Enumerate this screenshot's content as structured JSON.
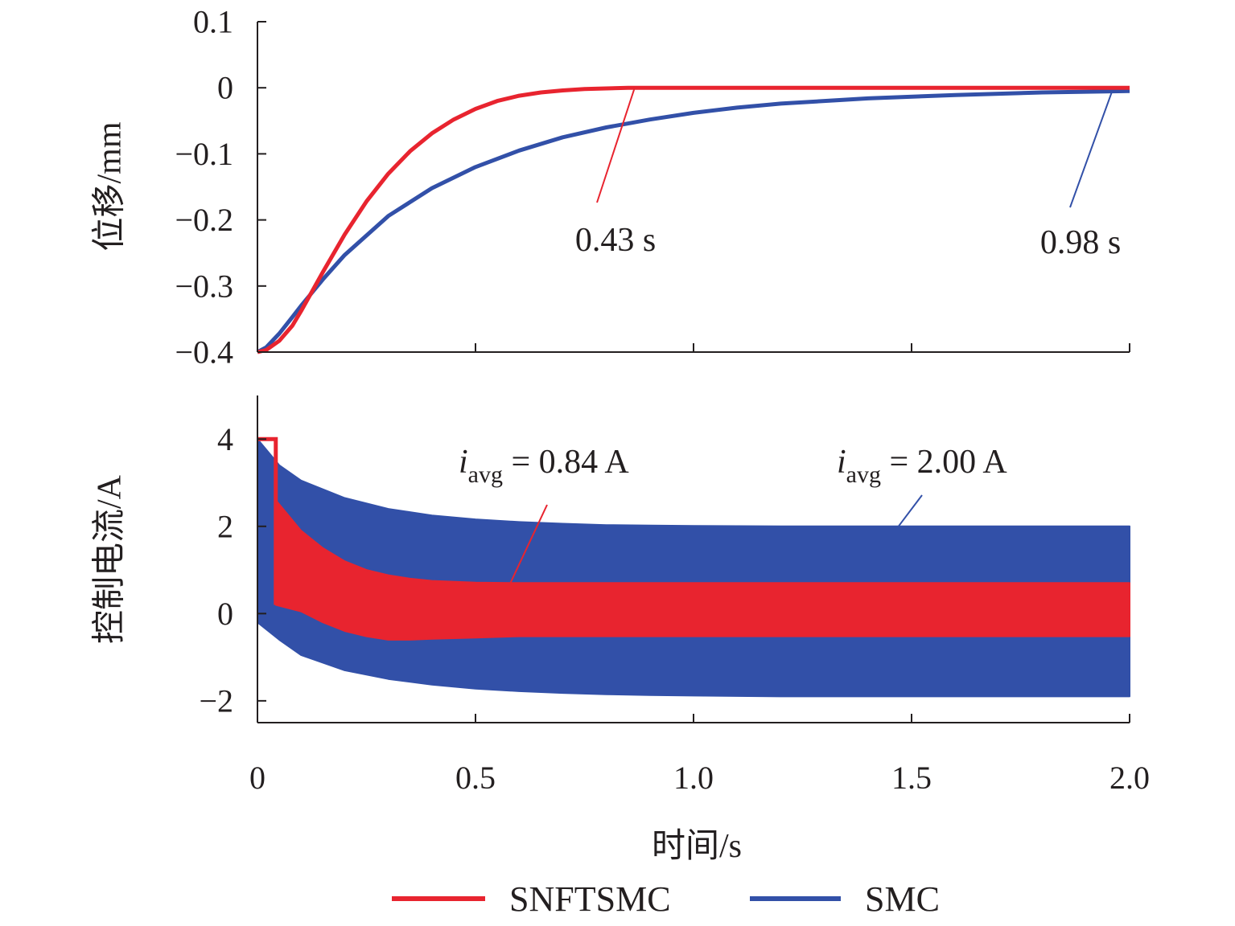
{
  "chart_data": [
    {
      "type": "line",
      "name": "displacement",
      "ylabel": "位移/mm",
      "xlim": [
        0,
        2.0
      ],
      "ylim": [
        -0.4,
        0.1
      ],
      "yticks": [
        0.1,
        0,
        -0.1,
        -0.2,
        -0.3,
        -0.4
      ],
      "ytick_labels": [
        "0.1",
        "0",
        "−0.1",
        "−0.2",
        "−0.3",
        "−0.4"
      ],
      "xticks": [
        0,
        0.5,
        1.0,
        1.5,
        2.0
      ],
      "grid": false,
      "series": [
        {
          "name": "SNFTSMC",
          "color": "#e8242f",
          "x": [
            0,
            0.02,
            0.05,
            0.08,
            0.1,
            0.15,
            0.2,
            0.25,
            0.3,
            0.35,
            0.4,
            0.45,
            0.5,
            0.55,
            0.6,
            0.65,
            0.7,
            0.75,
            0.8,
            0.85,
            0.9,
            1.0,
            1.2,
            1.4,
            1.6,
            1.8,
            2.0
          ],
          "y": [
            -0.4,
            -0.397,
            -0.383,
            -0.36,
            -0.338,
            -0.279,
            -0.222,
            -0.172,
            -0.13,
            -0.096,
            -0.069,
            -0.048,
            -0.032,
            -0.02,
            -0.012,
            -0.007,
            -0.004,
            -0.002,
            -0.001,
            0,
            0,
            0,
            0,
            0,
            0,
            0,
            0
          ]
        },
        {
          "name": "SMC",
          "color": "#3250a8",
          "x": [
            0,
            0.02,
            0.05,
            0.08,
            0.1,
            0.15,
            0.2,
            0.3,
            0.4,
            0.5,
            0.6,
            0.7,
            0.8,
            0.9,
            1.0,
            1.1,
            1.2,
            1.4,
            1.6,
            1.8,
            2.0
          ],
          "y": [
            -0.4,
            -0.393,
            -0.372,
            -0.347,
            -0.33,
            -0.29,
            -0.253,
            -0.194,
            -0.152,
            -0.12,
            -0.095,
            -0.075,
            -0.06,
            -0.048,
            -0.038,
            -0.03,
            -0.024,
            -0.016,
            -0.011,
            -0.007,
            -0.005
          ]
        }
      ],
      "annotations": [
        {
          "text": "0.43 s",
          "color": "#e8242f",
          "point": [
            0.865,
            0
          ]
        },
        {
          "text": "0.98 s",
          "color": "#3250a8",
          "point": [
            1.96,
            -0.005
          ]
        }
      ]
    },
    {
      "type": "area",
      "name": "control-current",
      "ylabel": "控制电流/A",
      "xlabel": "时间/s",
      "xlim": [
        0,
        2.0
      ],
      "ylim": [
        -2.5,
        5
      ],
      "yticks": [
        4,
        2,
        0,
        -2
      ],
      "ytick_labels": [
        "4",
        "2",
        "0",
        "−2"
      ],
      "xticks": [
        0,
        0.5,
        1.0,
        1.5,
        2.0
      ],
      "xtick_labels": [
        "0",
        "0.5",
        "1.0",
        "1.5",
        "2.0"
      ],
      "grid": false,
      "series": [
        {
          "name": "SMC",
          "color": "#3250a8",
          "x": [
            0,
            0.05,
            0.1,
            0.2,
            0.3,
            0.4,
            0.5,
            0.6,
            0.7,
            0.8,
            0.9,
            1.0,
            1.2,
            1.4,
            1.6,
            1.8,
            2.0
          ],
          "upper": [
            4.0,
            3.4,
            3.05,
            2.65,
            2.4,
            2.25,
            2.16,
            2.1,
            2.06,
            2.03,
            2.02,
            2.01,
            2.0,
            2.0,
            2.0,
            2.0,
            2.0
          ],
          "lower": [
            -0.2,
            -0.6,
            -0.95,
            -1.3,
            -1.5,
            -1.63,
            -1.72,
            -1.78,
            -1.82,
            -1.85,
            -1.87,
            -1.88,
            -1.9,
            -1.9,
            -1.9,
            -1.9,
            -1.9
          ]
        },
        {
          "name": "SNFTSMC",
          "color": "#e8242f",
          "x": [
            0,
            0.04,
            0.042,
            0.1,
            0.15,
            0.2,
            0.25,
            0.3,
            0.35,
            0.4,
            0.5,
            0.6,
            0.8,
            1.0,
            1.2,
            1.4,
            1.6,
            1.8,
            2.0
          ],
          "upper": [
            4.0,
            4.0,
            2.6,
            1.9,
            1.5,
            1.2,
            1.0,
            0.88,
            0.8,
            0.75,
            0.71,
            0.7,
            0.7,
            0.7,
            0.7,
            0.7,
            0.7,
            0.7,
            0.7
          ],
          "lower": [
            4.0,
            4.0,
            0.2,
            0.05,
            -0.2,
            -0.4,
            -0.52,
            -0.6,
            -0.6,
            -0.58,
            -0.55,
            -0.52,
            -0.52,
            -0.52,
            -0.52,
            -0.52,
            -0.52,
            -0.52,
            -0.52
          ]
        }
      ],
      "annotations": [
        {
          "prefix": "i",
          "subscript": "avg",
          "text": " = 0.84 A",
          "color": "#e8242f",
          "point": [
            0.58,
            0.7
          ]
        },
        {
          "prefix": "i",
          "subscript": "avg",
          "text": " = 2.00 A",
          "color": "#3250a8",
          "point": [
            1.47,
            2.0
          ]
        }
      ]
    }
  ],
  "legend": {
    "placement": "bottom",
    "entries": [
      {
        "label": "SNFTSMC",
        "color": "#e8242f"
      },
      {
        "label": "SMC",
        "color": "#3250a8"
      }
    ]
  }
}
